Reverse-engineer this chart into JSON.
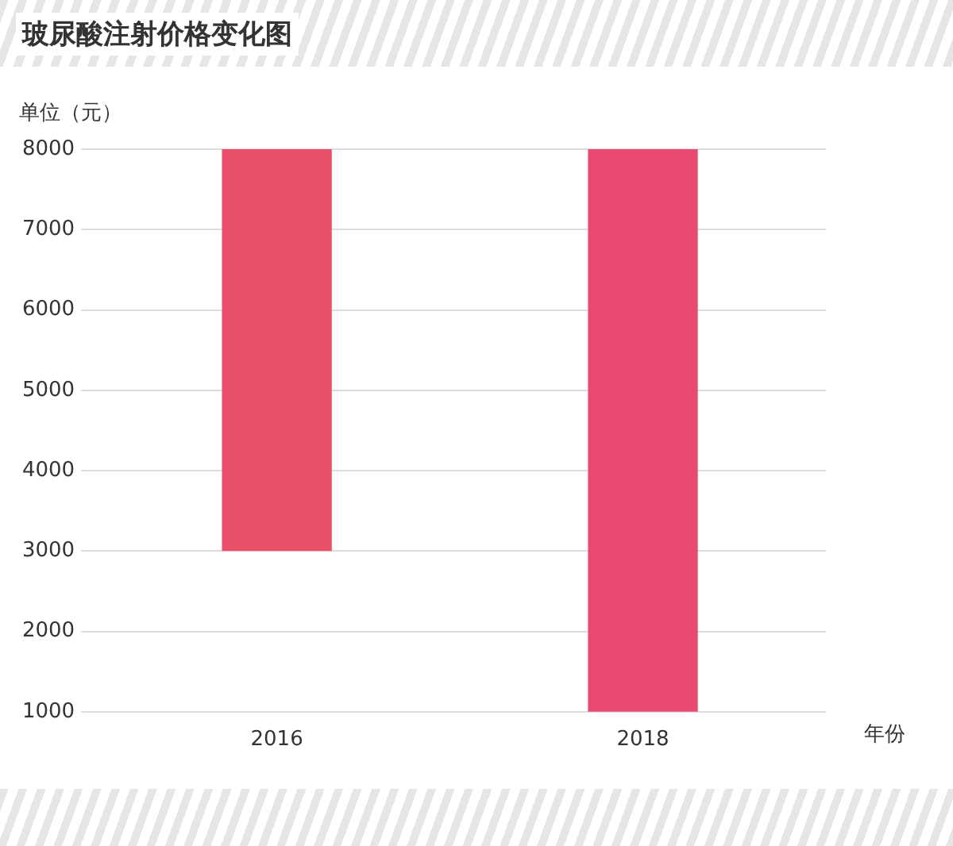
{
  "chart_data": {
    "type": "bar",
    "title": "玻尿酸注射价格变化图",
    "ylabel": "单位（元）",
    "xlabel": "年份",
    "categories": [
      "2016",
      "2018"
    ],
    "base": [
      3000,
      1000
    ],
    "values": [
      5000,
      7000
    ],
    "colors": [
      "#ea4f6a",
      "#e94a72"
    ],
    "ylim": [
      1000,
      8000
    ],
    "yticks": [
      1000,
      2000,
      3000,
      4000,
      5000,
      6000,
      7000,
      8000
    ],
    "grid": "y"
  }
}
